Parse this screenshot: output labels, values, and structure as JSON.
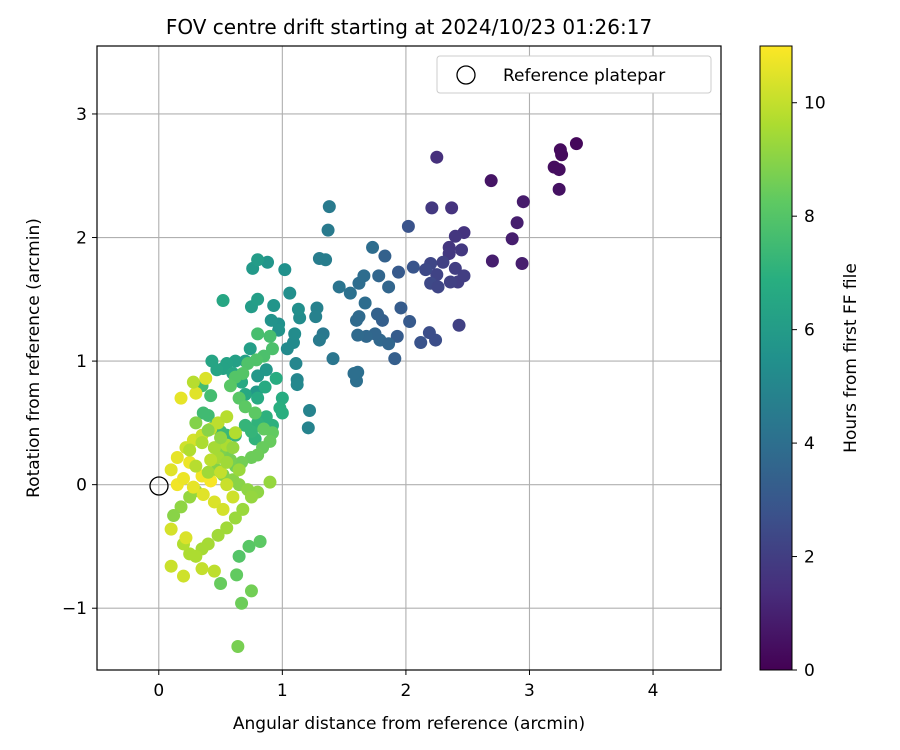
{
  "chart_data": {
    "type": "scatter",
    "title": "FOV centre drift starting at 2024/10/23 01:26:17",
    "xlabel": "Angular distance from reference (arcmin)",
    "ylabel": "Rotation from reference (arcmin)",
    "xlim": [
      -0.5,
      4.55
    ],
    "ylim": [
      -1.5,
      3.55
    ],
    "xticks": [
      "0",
      "1",
      "2",
      "3",
      "4"
    ],
    "yticks": [
      "−1",
      "0",
      "1",
      "2",
      "3"
    ],
    "grid": true,
    "legend": {
      "placement": "top-right",
      "entries": [
        "Reference platepar"
      ]
    },
    "colorbar": {
      "label": "Hours from first FF file",
      "range": [
        0,
        11
      ],
      "ticks": [
        "0",
        "2",
        "4",
        "6",
        "8",
        "10"
      ],
      "colormap": "viridis"
    },
    "reference_point": {
      "x": 0,
      "y": 0
    },
    "series": [
      {
        "columns": [
          "x",
          "y",
          "hours"
        ],
        "points": [
          [
            3.38,
            2.76,
            0.2
          ],
          [
            3.25,
            2.71,
            0.3
          ],
          [
            3.26,
            2.67,
            0.3
          ],
          [
            3.2,
            2.57,
            0.4
          ],
          [
            3.24,
            2.55,
            0.4
          ],
          [
            3.24,
            2.39,
            0.5
          ],
          [
            2.69,
            2.46,
            0.6
          ],
          [
            2.95,
            2.29,
            0.8
          ],
          [
            2.9,
            2.12,
            0.9
          ],
          [
            2.86,
            1.99,
            0.9
          ],
          [
            2.7,
            1.81,
            0.9
          ],
          [
            2.94,
            1.79,
            0.9
          ],
          [
            2.25,
            2.65,
            1.5
          ],
          [
            2.37,
            2.24,
            1.6
          ],
          [
            2.21,
            2.24,
            1.8
          ],
          [
            2.47,
            2.04,
            1.6
          ],
          [
            2.4,
            2.01,
            1.7
          ],
          [
            2.35,
            1.92,
            1.7
          ],
          [
            2.35,
            1.87,
            1.8
          ],
          [
            2.45,
            1.9,
            1.8
          ],
          [
            2.4,
            1.75,
            2.0
          ],
          [
            2.42,
            1.64,
            2.0
          ],
          [
            2.36,
            1.64,
            2.1
          ],
          [
            2.47,
            1.69,
            2.0
          ],
          [
            2.3,
            1.8,
            2.1
          ],
          [
            2.25,
            1.7,
            2.2
          ],
          [
            2.2,
            1.79,
            2.3
          ],
          [
            2.2,
            1.63,
            2.4
          ],
          [
            2.16,
            1.74,
            2.4
          ],
          [
            2.26,
            1.6,
            2.3
          ],
          [
            2.43,
            1.29,
            2.1
          ],
          [
            2.24,
            1.17,
            2.6
          ],
          [
            2.19,
            1.23,
            2.6
          ],
          [
            2.12,
            1.15,
            2.8
          ],
          [
            2.02,
            2.09,
            2.8
          ],
          [
            2.06,
            1.76,
            2.9
          ],
          [
            1.94,
            1.72,
            3.1
          ],
          [
            1.96,
            1.43,
            3.2
          ],
          [
            2.03,
            1.32,
            3.1
          ],
          [
            1.93,
            1.2,
            3.2
          ],
          [
            1.91,
            1.02,
            3.3
          ],
          [
            1.81,
            1.33,
            3.3
          ],
          [
            1.77,
            1.38,
            3.4
          ],
          [
            1.83,
            1.85,
            3.4
          ],
          [
            1.86,
            1.6,
            3.6
          ],
          [
            1.78,
            1.69,
            3.6
          ],
          [
            1.79,
            1.17,
            3.7
          ],
          [
            1.86,
            1.14,
            3.6
          ],
          [
            1.75,
            1.22,
            3.6
          ],
          [
            1.68,
            1.2,
            3.7
          ],
          [
            1.61,
            1.21,
            3.8
          ],
          [
            1.62,
            1.36,
            3.8
          ],
          [
            1.6,
            1.33,
            3.8
          ],
          [
            1.62,
            1.63,
            3.9
          ],
          [
            1.67,
            1.47,
            3.9
          ],
          [
            1.66,
            1.69,
            3.9
          ],
          [
            1.73,
            1.92,
            3.9
          ],
          [
            1.61,
            0.91,
            4.0
          ],
          [
            1.6,
            0.84,
            4.0
          ],
          [
            1.58,
            0.9,
            4.0
          ],
          [
            1.55,
            1.55,
            4.1
          ],
          [
            1.46,
            1.6,
            4.2
          ],
          [
            1.41,
            1.02,
            4.3
          ],
          [
            1.33,
            1.22,
            4.4
          ],
          [
            1.3,
            1.17,
            4.5
          ],
          [
            1.37,
            2.06,
            4.5
          ],
          [
            1.38,
            2.25,
            4.5
          ],
          [
            1.35,
            1.82,
            4.6
          ],
          [
            1.3,
            1.83,
            4.6
          ],
          [
            1.28,
            1.43,
            4.8
          ],
          [
            1.27,
            1.36,
            4.8
          ],
          [
            1.22,
            0.6,
            4.9
          ],
          [
            1.21,
            0.46,
            4.9
          ],
          [
            1.12,
            0.85,
            5.0
          ],
          [
            1.11,
            0.98,
            5.0
          ],
          [
            1.12,
            0.81,
            5.1
          ],
          [
            1.04,
            1.1,
            5.2
          ],
          [
            1.09,
            1.15,
            5.2
          ],
          [
            1.1,
            1.22,
            5.3
          ],
          [
            1.14,
            1.35,
            5.3
          ],
          [
            1.13,
            1.42,
            5.4
          ],
          [
            1.06,
            1.55,
            5.4
          ],
          [
            1.02,
            1.74,
            5.5
          ],
          [
            0.97,
            1.3,
            5.5
          ],
          [
            0.97,
            1.25,
            5.6
          ],
          [
            0.91,
            1.33,
            5.6
          ],
          [
            0.93,
            1.45,
            5.7
          ],
          [
            0.88,
            1.8,
            5.7
          ],
          [
            0.87,
            0.93,
            5.8
          ],
          [
            0.8,
            0.88,
            5.8
          ],
          [
            0.79,
            0.75,
            5.9
          ],
          [
            0.76,
            1.75,
            5.9
          ],
          [
            0.8,
            1.82,
            6.0
          ],
          [
            0.75,
            1.44,
            6.0
          ],
          [
            0.8,
            1.5,
            6.1
          ],
          [
            0.74,
            1.1,
            6.1
          ],
          [
            0.7,
            1.0,
            6.2
          ],
          [
            0.62,
            1.0,
            6.2
          ],
          [
            0.55,
            0.98,
            6.3
          ],
          [
            0.52,
            0.94,
            6.3
          ],
          [
            0.43,
            1.0,
            6.4
          ],
          [
            0.47,
            0.93,
            6.4
          ],
          [
            0.52,
            1.49,
            6.5
          ],
          [
            0.6,
            0.9,
            6.5
          ],
          [
            0.67,
            0.83,
            6.6
          ],
          [
            0.7,
            0.73,
            6.6
          ],
          [
            0.8,
            0.7,
            6.7
          ],
          [
            0.86,
            0.79,
            6.7
          ],
          [
            0.95,
            0.86,
            6.8
          ],
          [
            1.0,
            0.7,
            6.8
          ],
          [
            0.98,
            0.62,
            6.9
          ],
          [
            1.0,
            0.58,
            6.9
          ],
          [
            0.92,
            0.48,
            7.0
          ],
          [
            0.87,
            0.55,
            7.0
          ],
          [
            0.8,
            0.5,
            7.1
          ],
          [
            0.78,
            0.37,
            7.1
          ],
          [
            0.75,
            0.43,
            7.2
          ],
          [
            0.7,
            0.48,
            7.2
          ],
          [
            0.62,
            0.4,
            7.3
          ],
          [
            0.55,
            0.4,
            7.3
          ],
          [
            0.5,
            0.43,
            7.4
          ],
          [
            0.45,
            0.47,
            7.4
          ],
          [
            0.4,
            0.56,
            7.5
          ],
          [
            0.36,
            0.58,
            7.5
          ],
          [
            0.42,
            0.72,
            7.6
          ],
          [
            0.35,
            0.8,
            7.6
          ],
          [
            0.8,
            1.22,
            7.7
          ],
          [
            0.9,
            1.2,
            7.7
          ],
          [
            0.92,
            1.1,
            7.8
          ],
          [
            0.85,
            1.04,
            7.8
          ],
          [
            0.79,
            1.01,
            7.9
          ],
          [
            0.72,
            0.98,
            7.9
          ],
          [
            0.68,
            0.9,
            8.0
          ],
          [
            0.62,
            0.87,
            8.0
          ],
          [
            0.58,
            0.8,
            8.1
          ],
          [
            0.65,
            0.7,
            8.1
          ],
          [
            0.7,
            0.63,
            8.2
          ],
          [
            0.78,
            0.58,
            8.2
          ],
          [
            0.85,
            0.45,
            8.3
          ],
          [
            0.92,
            0.42,
            8.3
          ],
          [
            0.9,
            0.35,
            8.4
          ],
          [
            0.84,
            0.3,
            8.4
          ],
          [
            0.8,
            0.24,
            8.5
          ],
          [
            0.75,
            0.22,
            8.5
          ],
          [
            0.67,
            0.18,
            8.6
          ],
          [
            0.62,
            0.15,
            8.6
          ],
          [
            0.58,
            0.2,
            8.7
          ],
          [
            0.55,
            0.24,
            8.7
          ],
          [
            0.5,
            0.28,
            8.8
          ],
          [
            0.45,
            0.2,
            8.8
          ],
          [
            0.47,
            0.12,
            8.9
          ],
          [
            0.52,
            0.08,
            8.9
          ],
          [
            0.6,
            0.04,
            9.0
          ],
          [
            0.65,
            0.0,
            9.0
          ],
          [
            0.72,
            -0.04,
            9.1
          ],
          [
            0.8,
            -0.06,
            9.1
          ],
          [
            0.9,
            0.02,
            9.2
          ],
          [
            0.75,
            -0.1,
            9.2
          ],
          [
            0.68,
            -0.2,
            9.3
          ],
          [
            0.62,
            -0.27,
            9.3
          ],
          [
            0.55,
            -0.35,
            9.4
          ],
          [
            0.48,
            -0.41,
            9.4
          ],
          [
            0.4,
            -0.48,
            9.5
          ],
          [
            0.35,
            -0.52,
            9.5
          ],
          [
            0.3,
            -0.58,
            9.6
          ],
          [
            0.25,
            -0.56,
            9.6
          ],
          [
            0.2,
            -0.48,
            9.7
          ],
          [
            0.65,
            -0.58,
            8.0
          ],
          [
            0.73,
            -0.5,
            8.1
          ],
          [
            0.82,
            -0.46,
            8.2
          ],
          [
            0.63,
            -0.73,
            8.3
          ],
          [
            0.5,
            -0.8,
            8.4
          ],
          [
            0.67,
            -0.96,
            8.5
          ],
          [
            0.75,
            -0.86,
            8.6
          ],
          [
            0.64,
            -1.31,
            8.7
          ],
          [
            0.45,
            -0.7,
            9.9
          ],
          [
            0.35,
            -0.68,
            10.0
          ],
          [
            0.1,
            -0.66,
            10.1
          ],
          [
            0.2,
            -0.74,
            10.2
          ],
          [
            0.1,
            -0.36,
            10.3
          ],
          [
            0.22,
            -0.43,
            10.4
          ],
          [
            0.1,
            0.12,
            10.5
          ],
          [
            0.15,
            0.22,
            10.6
          ],
          [
            0.25,
            0.18,
            10.7
          ],
          [
            0.35,
            0.07,
            10.8
          ],
          [
            0.42,
            0.03,
            10.9
          ],
          [
            0.18,
            0.7,
            10.6
          ],
          [
            0.3,
            0.74,
            10.5
          ],
          [
            0.38,
            0.86,
            10.4
          ],
          [
            0.28,
            0.83,
            9.8
          ],
          [
            0.22,
            0.3,
            10.2
          ],
          [
            0.28,
            0.36,
            10.3
          ],
          [
            0.35,
            0.4,
            10.1
          ],
          [
            0.42,
            0.45,
            10.0
          ],
          [
            0.48,
            0.5,
            9.9
          ],
          [
            0.55,
            0.55,
            9.8
          ],
          [
            0.62,
            0.42,
            9.7
          ],
          [
            0.55,
            0.32,
            9.6
          ],
          [
            0.48,
            0.22,
            9.5
          ],
          [
            0.4,
            0.1,
            9.4
          ],
          [
            0.3,
            -0.05,
            9.3
          ],
          [
            0.25,
            -0.1,
            9.2
          ],
          [
            0.18,
            -0.18,
            9.1
          ],
          [
            0.12,
            -0.25,
            9.0
          ],
          [
            0.15,
            0.0,
            10.8
          ],
          [
            0.2,
            0.05,
            10.7
          ],
          [
            0.28,
            -0.02,
            10.6
          ],
          [
            0.36,
            -0.08,
            10.5
          ],
          [
            0.45,
            -0.14,
            10.4
          ],
          [
            0.52,
            -0.2,
            10.3
          ],
          [
            0.6,
            -0.1,
            10.2
          ],
          [
            0.55,
            0.0,
            10.1
          ],
          [
            0.5,
            0.1,
            10.0
          ],
          [
            0.42,
            0.2,
            9.9
          ],
          [
            0.3,
            0.15,
            9.8
          ],
          [
            0.25,
            0.28,
            9.7
          ],
          [
            0.35,
            0.34,
            9.6
          ],
          [
            0.45,
            0.3,
            9.5
          ],
          [
            0.55,
            0.18,
            9.4
          ],
          [
            0.65,
            0.12,
            9.3
          ],
          [
            0.6,
            0.3,
            9.2
          ],
          [
            0.5,
            0.38,
            9.1
          ],
          [
            0.4,
            0.44,
            9.0
          ],
          [
            0.3,
            0.5,
            8.9
          ]
        ]
      }
    ]
  }
}
